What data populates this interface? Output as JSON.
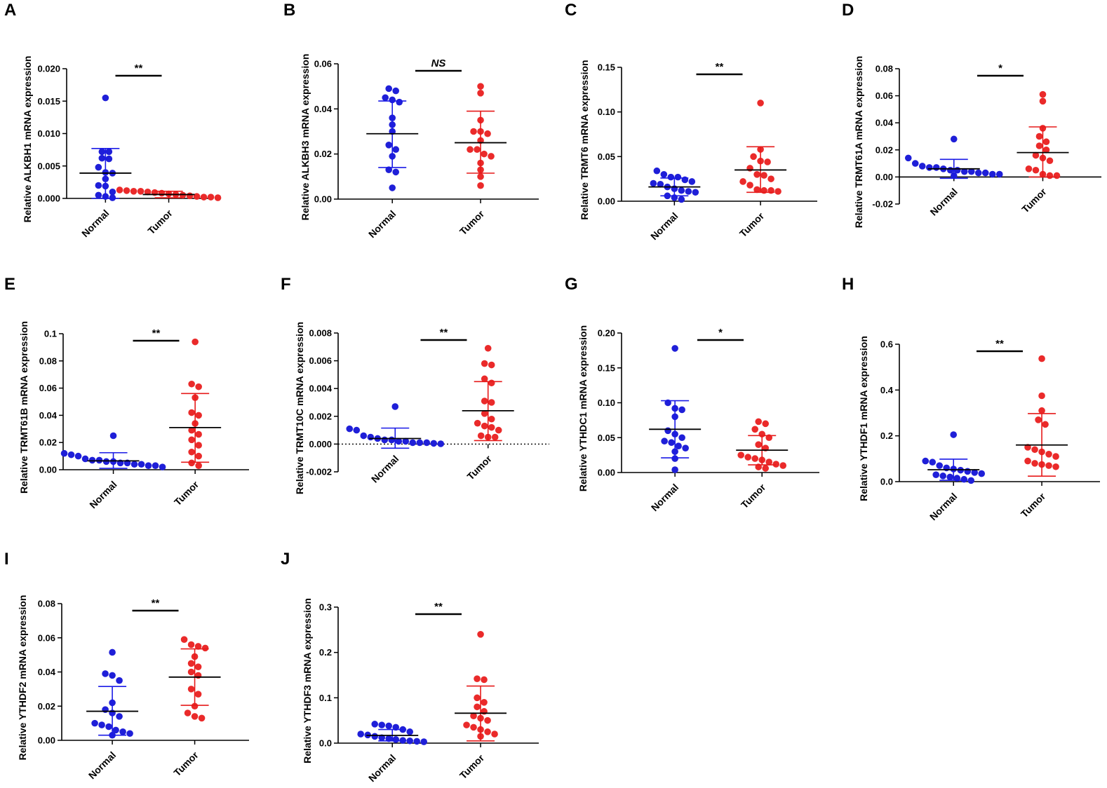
{
  "colors": {
    "normal": "#1a1ae6",
    "tumor": "#e61a1a",
    "normal_point": "#1f1fd8",
    "tumor_point": "#ea2a2a",
    "axis": "#000000"
  },
  "chart_data": [
    {
      "type": "scatter",
      "letter": "A",
      "ylabel": "Relative ALKBH1 mRNA expression",
      "categories": [
        "Normal",
        "Tumor"
      ],
      "ylim": [
        0,
        0.02
      ],
      "yticks": [
        0,
        0.005,
        0.01,
        0.015,
        0.02
      ],
      "ytick_labels": [
        "0.000",
        "0.005",
        "0.010",
        "0.015",
        "0.020"
      ],
      "significance": "**",
      "sig_italic": false,
      "series": [
        {
          "name": "Normal",
          "mean": 0.0039,
          "sd_upper": 0.0077,
          "sd_lower": 0.0,
          "values": [
            0.0155,
            0.0072,
            0.0072,
            0.0062,
            0.0061,
            0.0048,
            0.004,
            0.0039,
            0.003,
            0.002,
            0.0019,
            0.001,
            0.0005,
            0.0003,
            0.0001
          ]
        },
        {
          "name": "Tumor",
          "mean": 0.0006,
          "sd_upper": 0.0011,
          "sd_lower": 0.0001,
          "values": [
            0.0013,
            0.0012,
            0.0011,
            0.0011,
            0.001,
            0.0009,
            0.0008,
            0.0007,
            0.0006,
            0.0005,
            0.0004,
            0.0003,
            0.0002,
            0.0002,
            0.0001
          ]
        }
      ]
    },
    {
      "type": "scatter",
      "letter": "B",
      "ylabel": "Relative ALKBH3 mRNA expression",
      "categories": [
        "Normal",
        "Tumor"
      ],
      "ylim": [
        0,
        0.06
      ],
      "yticks": [
        0,
        0.02,
        0.04,
        0.06
      ],
      "ytick_labels": [
        "0.00",
        "0.02",
        "0.04",
        "0.06"
      ],
      "significance": "NS",
      "sig_italic": true,
      "series": [
        {
          "name": "Normal",
          "mean": 0.029,
          "sd_upper": 0.0435,
          "sd_lower": 0.014,
          "values": [
            0.049,
            0.048,
            0.045,
            0.044,
            0.043,
            0.036,
            0.033,
            0.03,
            0.024,
            0.022,
            0.019,
            0.013,
            0.012,
            0.005
          ]
        },
        {
          "name": "Tumor",
          "mean": 0.025,
          "sd_upper": 0.039,
          "sd_lower": 0.0115,
          "values": [
            0.05,
            0.047,
            0.035,
            0.03,
            0.03,
            0.029,
            0.026,
            0.022,
            0.022,
            0.02,
            0.019,
            0.016,
            0.013,
            0.01,
            0.006
          ]
        }
      ]
    },
    {
      "type": "scatter",
      "letter": "C",
      "ylabel": "Relative TRMT6  mRNA expression",
      "categories": [
        "Normal",
        "Tumor"
      ],
      "ylim": [
        0,
        0.15
      ],
      "yticks": [
        0,
        0.05,
        0.1,
        0.15
      ],
      "ytick_labels": [
        "0.00",
        "0.05",
        "0.10",
        "0.15"
      ],
      "significance": "**",
      "sig_italic": false,
      "series": [
        {
          "name": "Normal",
          "mean": 0.016,
          "sd_upper": 0.026,
          "sd_lower": 0.006,
          "values": [
            0.034,
            0.03,
            0.027,
            0.027,
            0.024,
            0.022,
            0.02,
            0.019,
            0.016,
            0.014,
            0.012,
            0.011,
            0.01,
            0.006,
            0.004,
            0.002
          ]
        },
        {
          "name": "Tumor",
          "mean": 0.035,
          "sd_upper": 0.061,
          "sd_lower": 0.01,
          "values": [
            0.11,
            0.058,
            0.05,
            0.045,
            0.044,
            0.037,
            0.03,
            0.029,
            0.025,
            0.022,
            0.018,
            0.013,
            0.012,
            0.012,
            0.011
          ]
        }
      ]
    },
    {
      "type": "scatter",
      "letter": "D",
      "ylabel": "Relative TRMT61A  mRNA expression",
      "categories": [
        "Normal",
        "Tumor"
      ],
      "ylim": [
        -0.02,
        0.08
      ],
      "yticks": [
        -0.02,
        0,
        0.02,
        0.04,
        0.06,
        0.08
      ],
      "ytick_labels": [
        "-0.02",
        "0.00",
        "0.02",
        "0.04",
        "0.06",
        "0.08"
      ],
      "significance": "*",
      "sig_italic": false,
      "series": [
        {
          "name": "Normal",
          "mean": 0.006,
          "sd_upper": 0.013,
          "sd_lower": -0.001,
          "values": [
            0.028,
            0.014,
            0.01,
            0.008,
            0.007,
            0.007,
            0.006,
            0.005,
            0.005,
            0.004,
            0.004,
            0.003,
            0.003,
            0.002,
            0.002,
            0.001
          ]
        },
        {
          "name": "Tumor",
          "mean": 0.018,
          "sd_upper": 0.037,
          "sd_lower": 0.0,
          "values": [
            0.061,
            0.056,
            0.036,
            0.03,
            0.026,
            0.023,
            0.02,
            0.016,
            0.014,
            0.012,
            0.006,
            0.005,
            0.002,
            0.001,
            0.001
          ]
        }
      ]
    },
    {
      "type": "scatter",
      "letter": "E",
      "ylabel": "Relative TRMT61B  mRNA expression",
      "categories": [
        "Normal",
        "Tumor"
      ],
      "ylim": [
        0,
        0.1
      ],
      "yticks": [
        0,
        0.02,
        0.04,
        0.06,
        0.08,
        0.1
      ],
      "ytick_labels": [
        "0.00",
        "0.02",
        "0.04",
        "0.06",
        "0.08",
        "0.1"
      ],
      "significance": "**",
      "sig_italic": false,
      "series": [
        {
          "name": "Normal",
          "mean": 0.0065,
          "sd_upper": 0.0125,
          "sd_lower": 0.001,
          "values": [
            0.025,
            0.012,
            0.011,
            0.01,
            0.008,
            0.007,
            0.007,
            0.006,
            0.006,
            0.005,
            0.005,
            0.004,
            0.004,
            0.003,
            0.003,
            0.002
          ]
        },
        {
          "name": "Tumor",
          "mean": 0.031,
          "sd_upper": 0.056,
          "sd_lower": 0.0055,
          "values": [
            0.094,
            0.063,
            0.061,
            0.053,
            0.042,
            0.04,
            0.034,
            0.029,
            0.026,
            0.022,
            0.018,
            0.013,
            0.01,
            0.005,
            0.003
          ]
        }
      ]
    },
    {
      "type": "scatter",
      "letter": "F",
      "ylabel": "Relative  TRMT10C mRNA expression",
      "categories": [
        "Normal",
        "Tumor"
      ],
      "ylim": [
        -0.002,
        0.008
      ],
      "yticks": [
        -0.002,
        0,
        0.002,
        0.004,
        0.006,
        0.008
      ],
      "ytick_labels": [
        "-0.002",
        "0.000",
        "0.002",
        "0.004",
        "0.006",
        "0.008"
      ],
      "significance": "**",
      "sig_italic": false,
      "zero_dotted": true,
      "series": [
        {
          "name": "Normal",
          "mean": 0.0004,
          "sd_upper": 0.00115,
          "sd_lower": -0.0003,
          "values": [
            0.0027,
            0.0011,
            0.001,
            0.0006,
            0.0005,
            0.0004,
            0.0003,
            0.0003,
            0.0002,
            0.0002,
            0.0001,
            0.0001,
            0.0001,
            5e-05,
            2e-05
          ]
        },
        {
          "name": "Tumor",
          "mean": 0.0024,
          "sd_upper": 0.0045,
          "sd_lower": 0.00025,
          "values": [
            0.0069,
            0.0058,
            0.0057,
            0.0047,
            0.0044,
            0.0031,
            0.003,
            0.0022,
            0.0018,
            0.0015,
            0.0013,
            0.0012,
            0.001,
            0.0006,
            0.0005,
            0.0005
          ]
        }
      ]
    },
    {
      "type": "scatter",
      "letter": "G",
      "ylabel": "Relative YTHDC1 mRNA expression",
      "categories": [
        "Normal",
        "Tumor"
      ],
      "ylim": [
        0,
        0.2
      ],
      "yticks": [
        0,
        0.05,
        0.1,
        0.15,
        0.2
      ],
      "ytick_labels": [
        "0.00",
        "0.05",
        "0.10",
        "0.15",
        "0.20"
      ],
      "significance": "*",
      "sig_italic": false,
      "series": [
        {
          "name": "Normal",
          "mean": 0.062,
          "sd_upper": 0.103,
          "sd_lower": 0.021,
          "values": [
            0.178,
            0.1,
            0.092,
            0.09,
            0.08,
            0.06,
            0.055,
            0.05,
            0.045,
            0.043,
            0.038,
            0.035,
            0.03,
            0.02,
            0.004
          ]
        },
        {
          "name": "Tumor",
          "mean": 0.032,
          "sd_upper": 0.053,
          "sd_lower": 0.011,
          "values": [
            0.073,
            0.07,
            0.062,
            0.055,
            0.05,
            0.04,
            0.035,
            0.025,
            0.022,
            0.02,
            0.018,
            0.015,
            0.012,
            0.01,
            0.008,
            0.006
          ]
        }
      ]
    },
    {
      "type": "scatter",
      "letter": "H",
      "ylabel": "Relative YTHDF1 mRNA expression",
      "categories": [
        "Normal",
        "Tumor"
      ],
      "ylim": [
        0,
        0.6
      ],
      "yticks": [
        0,
        0.2,
        0.4,
        0.6
      ],
      "ytick_labels": [
        "0.0",
        "0.2",
        "0.4",
        "0.6"
      ],
      "significance": "**",
      "sig_italic": false,
      "series": [
        {
          "name": "Normal",
          "mean": 0.052,
          "sd_upper": 0.098,
          "sd_lower": 0.006,
          "values": [
            0.205,
            0.09,
            0.085,
            0.07,
            0.06,
            0.055,
            0.05,
            0.045,
            0.04,
            0.035,
            0.03,
            0.025,
            0.02,
            0.015,
            0.01,
            0.005
          ]
        },
        {
          "name": "Tumor",
          "mean": 0.16,
          "sd_upper": 0.297,
          "sd_lower": 0.024,
          "values": [
            0.537,
            0.375,
            0.31,
            0.27,
            0.25,
            0.15,
            0.14,
            0.13,
            0.12,
            0.11,
            0.09,
            0.08,
            0.075,
            0.07,
            0.065
          ]
        }
      ]
    },
    {
      "type": "scatter",
      "letter": "I",
      "ylabel": "Relative YTHDF2 mRNA expression",
      "categories": [
        "Normal",
        "Tumor"
      ],
      "ylim": [
        0,
        0.08
      ],
      "yticks": [
        0,
        0.02,
        0.04,
        0.06,
        0.08
      ],
      "ytick_labels": [
        "0.00",
        "0.02",
        "0.04",
        "0.06",
        "0.08"
      ],
      "significance": "**",
      "sig_italic": false,
      "series": [
        {
          "name": "Normal",
          "mean": 0.017,
          "sd_upper": 0.0315,
          "sd_lower": 0.003,
          "values": [
            0.0515,
            0.039,
            0.038,
            0.035,
            0.022,
            0.018,
            0.016,
            0.014,
            0.01,
            0.009,
            0.008,
            0.006,
            0.005,
            0.004,
            0.003
          ]
        },
        {
          "name": "Tumor",
          "mean": 0.037,
          "sd_upper": 0.0535,
          "sd_lower": 0.0205,
          "values": [
            0.059,
            0.056,
            0.055,
            0.054,
            0.049,
            0.045,
            0.043,
            0.04,
            0.038,
            0.03,
            0.027,
            0.02,
            0.016,
            0.014,
            0.013
          ]
        }
      ]
    },
    {
      "type": "scatter",
      "letter": "J",
      "ylabel": "Relative YTHDF3 mRNA expression",
      "categories": [
        "Normal",
        "Tumor"
      ],
      "ylim": [
        0,
        0.3
      ],
      "yticks": [
        0,
        0.1,
        0.2,
        0.3
      ],
      "ytick_labels": [
        "0.0",
        "0.1",
        "0.2",
        "0.3"
      ],
      "significance": "**",
      "sig_italic": false,
      "series": [
        {
          "name": "Normal",
          "mean": 0.017,
          "sd_upper": 0.03,
          "sd_lower": 0.005,
          "values": [
            0.042,
            0.04,
            0.038,
            0.035,
            0.03,
            0.025,
            0.02,
            0.018,
            0.015,
            0.012,
            0.01,
            0.008,
            0.006,
            0.005,
            0.004,
            0.003
          ]
        },
        {
          "name": "Tumor",
          "mean": 0.066,
          "sd_upper": 0.126,
          "sd_lower": 0.005,
          "values": [
            0.24,
            0.142,
            0.14,
            0.1,
            0.09,
            0.08,
            0.07,
            0.06,
            0.055,
            0.05,
            0.04,
            0.035,
            0.03,
            0.025,
            0.02,
            0.015
          ]
        }
      ]
    }
  ]
}
